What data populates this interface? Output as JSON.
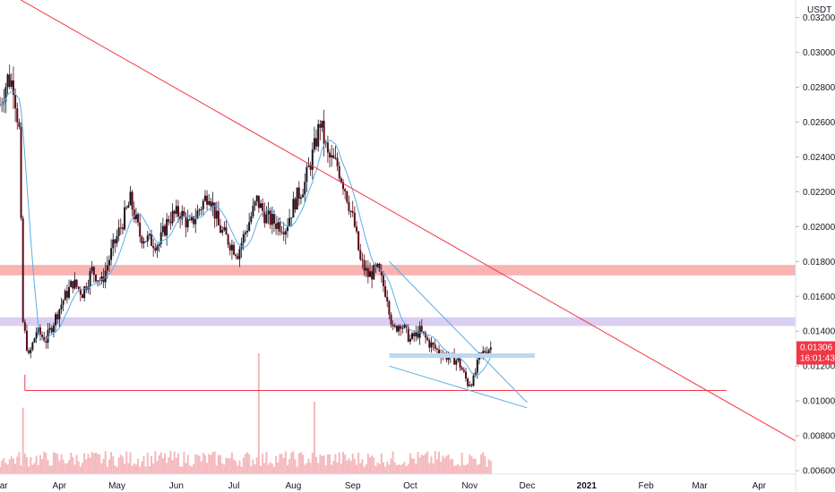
{
  "chart_data": {
    "type": "candlestick",
    "title": "",
    "currency_label": "USDT",
    "y_axis": {
      "min": 0.0058,
      "max": 0.033,
      "ticks": [
        "0.03200",
        "0.03000",
        "0.02800",
        "0.02600",
        "0.02400",
        "0.02200",
        "0.02000",
        "0.01800",
        "0.01600",
        "0.01400",
        "0.01200",
        "0.01000",
        "0.00800",
        "0.00600"
      ]
    },
    "x_axis": {
      "start": "2020-03-01",
      "end": "2021-04-20",
      "ticks": [
        {
          "label": "Mar",
          "date": "2020-03-01",
          "bold": false
        },
        {
          "label": "Apr",
          "date": "2020-04-01",
          "bold": false
        },
        {
          "label": "May",
          "date": "2020-05-01",
          "bold": false
        },
        {
          "label": "Jun",
          "date": "2020-06-01",
          "bold": false
        },
        {
          "label": "Jul",
          "date": "2020-07-01",
          "bold": false
        },
        {
          "label": "Aug",
          "date": "2020-08-01",
          "bold": false
        },
        {
          "label": "Sep",
          "date": "2020-09-01",
          "bold": false
        },
        {
          "label": "Oct",
          "date": "2020-10-01",
          "bold": false
        },
        {
          "label": "Nov",
          "date": "2020-11-01",
          "bold": false
        },
        {
          "label": "Dec",
          "date": "2020-12-01",
          "bold": false
        },
        {
          "label": "2021",
          "date": "2021-01-01",
          "bold": true
        },
        {
          "label": "Feb",
          "date": "2021-02-01",
          "bold": false
        },
        {
          "label": "Mar",
          "date": "2021-03-01",
          "bold": false
        },
        {
          "label": "Apr",
          "date": "2021-04-01",
          "bold": false
        }
      ]
    },
    "price_path": [
      [
        "2020-03-01",
        0.027
      ],
      [
        "2020-03-05",
        0.0285
      ],
      [
        "2020-03-08",
        0.0282
      ],
      [
        "2020-03-11",
        0.0255
      ],
      [
        "2020-03-13",
        0.0145
      ],
      [
        "2020-03-16",
        0.0125
      ],
      [
        "2020-03-20",
        0.014
      ],
      [
        "2020-03-25",
        0.0135
      ],
      [
        "2020-03-30",
        0.0148
      ],
      [
        "2020-04-03",
        0.0158
      ],
      [
        "2020-04-08",
        0.0168
      ],
      [
        "2020-04-13",
        0.0162
      ],
      [
        "2020-04-18",
        0.0175
      ],
      [
        "2020-04-23",
        0.0168
      ],
      [
        "2020-04-28",
        0.0185
      ],
      [
        "2020-05-03",
        0.02
      ],
      [
        "2020-05-08",
        0.0215
      ],
      [
        "2020-05-13",
        0.0195
      ],
      [
        "2020-05-18",
        0.0192
      ],
      [
        "2020-05-23",
        0.019
      ],
      [
        "2020-05-28",
        0.0205
      ],
      [
        "2020-06-03",
        0.0208
      ],
      [
        "2020-06-08",
        0.02
      ],
      [
        "2020-06-13",
        0.021
      ],
      [
        "2020-06-18",
        0.022
      ],
      [
        "2020-06-23",
        0.02
      ],
      [
        "2020-06-28",
        0.0192
      ],
      [
        "2020-07-03",
        0.0185
      ],
      [
        "2020-07-08",
        0.02
      ],
      [
        "2020-07-13",
        0.0215
      ],
      [
        "2020-07-18",
        0.0205
      ],
      [
        "2020-07-23",
        0.0202
      ],
      [
        "2020-07-28",
        0.02
      ],
      [
        "2020-08-02",
        0.0215
      ],
      [
        "2020-08-07",
        0.0225
      ],
      [
        "2020-08-12",
        0.0245
      ],
      [
        "2020-08-15",
        0.026
      ],
      [
        "2020-08-19",
        0.024
      ],
      [
        "2020-08-24",
        0.0235
      ],
      [
        "2020-08-28",
        0.0222
      ],
      [
        "2020-09-02",
        0.02
      ],
      [
        "2020-09-05",
        0.018
      ],
      [
        "2020-09-09",
        0.0172
      ],
      [
        "2020-09-14",
        0.0175
      ],
      [
        "2020-09-19",
        0.016
      ],
      [
        "2020-09-22",
        0.014
      ],
      [
        "2020-09-26",
        0.0145
      ],
      [
        "2020-10-01",
        0.0135
      ],
      [
        "2020-10-06",
        0.014
      ],
      [
        "2020-10-11",
        0.0133
      ],
      [
        "2020-10-16",
        0.0128
      ],
      [
        "2020-10-21",
        0.0125
      ],
      [
        "2020-10-26",
        0.0123
      ],
      [
        "2020-10-31",
        0.011
      ],
      [
        "2020-11-03",
        0.0112
      ],
      [
        "2020-11-06",
        0.0125
      ],
      [
        "2020-11-10",
        0.013
      ],
      [
        "2020-11-12",
        0.01306
      ]
    ],
    "volume_spikes": [
      {
        "date": "2020-03-13",
        "relative": 0.55
      },
      {
        "date": "2020-07-14",
        "relative": 1.0
      },
      {
        "date": "2020-08-12",
        "relative": 0.6
      }
    ],
    "volume_period": [
      "2020-03-01",
      "2020-11-12"
    ],
    "moving_average": true,
    "last_price": "0.01306",
    "countdown": "16:01:43",
    "zones": [
      {
        "low": 0.0172,
        "high": 0.0178,
        "color": "#f8a6a6"
      },
      {
        "low": 0.0143,
        "high": 0.0148,
        "color": "#d4c5ef"
      }
    ],
    "lines": [
      {
        "kind": "trend",
        "from": [
          "2020-02-01",
          0.0355
        ],
        "to": [
          "2021-04-20",
          0.0077
        ],
        "color": "#f23645"
      },
      {
        "kind": "horizontal",
        "from": [
          "2020-03-14",
          0.0106
        ],
        "to": [
          "2021-03-15",
          0.0106
        ],
        "color": "#f23645"
      },
      {
        "kind": "vertical",
        "from": [
          "2020-03-14",
          0.0106
        ],
        "to": [
          "2020-03-14",
          0.0115
        ],
        "color": "#f23645"
      },
      {
        "kind": "channel-upper",
        "from": [
          "2020-09-20",
          0.018
        ],
        "to": [
          "2020-12-01",
          0.0099
        ],
        "color": "#5aaee6"
      },
      {
        "kind": "channel-lower",
        "from": [
          "2020-09-20",
          0.012
        ],
        "to": [
          "2020-12-01",
          0.0096
        ],
        "color": "#5aaee6"
      }
    ],
    "level_bar": {
      "from": "2020-09-20",
      "to": "2020-12-05",
      "value": 0.0126,
      "color": "#bcd9f1"
    },
    "colors": {
      "up": "#131722",
      "down": "#5b0a18",
      "ma": "#5aaee6",
      "volume": "#f4b8bc",
      "tag": "#f23645"
    }
  }
}
